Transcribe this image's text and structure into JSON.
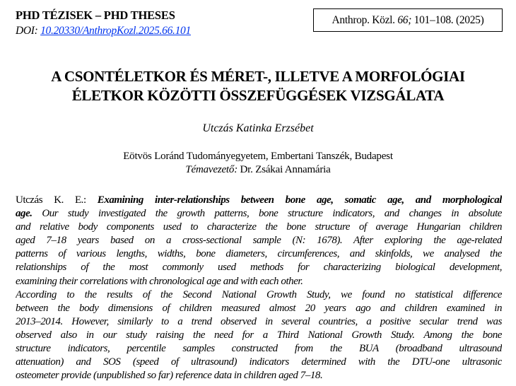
{
  "header": {
    "series": "PHD TÉZISEK – PHD THESES",
    "doi_label": "DOI: ",
    "doi_link": "10.20330/AnthropKozl.2025.66.101",
    "citation": {
      "journal": "Anthrop. Közl. ",
      "volume": "66;",
      "pages": " 101–108. (2025)"
    }
  },
  "title": [
    "A CSONTÉLETKOR ÉS MÉRET-, ILLETVE A MORFOLÓGIAI",
    "ÉLETKOR KÖZÖTTI ÖSSZEFÜGGÉSEK VIZSGÁLATA"
  ],
  "author": "Utczás Katinka Erzsébet",
  "affiliation": "Eötvös Loránd Tudományegyetem, Embertani Tanszék, Budapest",
  "supervisor": {
    "label": "Témavezető:",
    "name": " Dr. Zsákai Annamária"
  },
  "abstract": {
    "author_ref": "Utczás K. E.: ",
    "title_line1": "Examining inter-relationships between bone age, somatic age, and morphological",
    "title_line2": "age.",
    "lines": [
      " Our study investigated the growth patterns, bone structure indicators, and changes in absolute",
      "and relative body components used to characterize the bone structure of average Hungarian children",
      "aged 7–18 years based on a cross-sectional sample (N: 1678). After exploring the age-related",
      "patterns of various lengths, widths, bone diameters, circumferences, and skinfolds, we analysed the",
      "relationships of the most commonly used methods for characterizing biological development,",
      "examining their correlations with chronological age and with each other.",
      "According to the results of the Second National Growth Study, we found no statistical difference",
      "between the body dimensions of children measured almost 20 years ago and children examined in",
      "2013–2014. However, similarly to a trend observed in several countries, a positive secular trend was",
      "observed also in our study raising the need for a Third National Growth Study. Among the bone",
      "structure indicators, percentile samples constructed from the BUA (broadband ultrasound",
      "attenuation) and SOS (speed of ultrasound) indicators determined with the DTU-one ultrasonic",
      "osteometer provide (unpublished so far) reference data in children aged 7–18."
    ]
  }
}
